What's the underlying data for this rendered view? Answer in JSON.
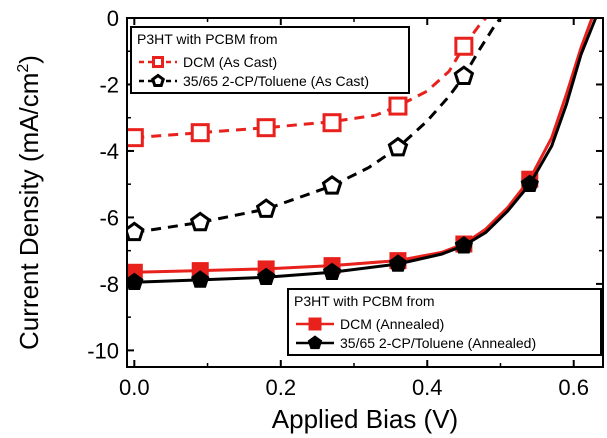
{
  "chart_data": {
    "type": "line",
    "xlabel": "Applied Bias (V)",
    "ylabel_main": "Current Density (mA/cm",
    "ylabel_sup": "2",
    "ylabel_close": ")",
    "xlim": [
      -0.01,
      0.64
    ],
    "ylim": [
      -10.5,
      0
    ],
    "x_ticks": [
      0.0,
      0.2,
      0.4,
      0.6
    ],
    "x_tick_labels": [
      "0.0",
      "0.2",
      "0.4",
      "0.6"
    ],
    "y_ticks": [
      0,
      -2,
      -4,
      -6,
      -8,
      -10
    ],
    "y_tick_labels": [
      "0",
      "-2",
      "-4",
      "-6",
      "-8",
      "-10"
    ],
    "legends": [
      {
        "title": "P3HT with PCBM from",
        "placement": "top-left",
        "entries": [
          {
            "label": "DCM (As Cast)",
            "series": 0
          },
          {
            "label": "35/65 2-CP/Toluene (As Cast)",
            "series": 1
          }
        ]
      },
      {
        "title": "P3HT with PCBM from",
        "placement": "bottom-right",
        "entries": [
          {
            "label": "DCM (Annealed)",
            "series": 2
          },
          {
            "label": "35/65 2-CP/Toluene (Annealed)",
            "series": 3
          }
        ]
      }
    ],
    "series": [
      {
        "name": "DCM (As Cast)",
        "color": "#e8211d",
        "marker": "square-open",
        "line": "dashed",
        "points": [
          [
            0.0,
            -3.6
          ],
          [
            0.09,
            -3.45
          ],
          [
            0.18,
            -3.3
          ],
          [
            0.27,
            -3.15
          ],
          [
            0.36,
            -2.65
          ],
          [
            0.45,
            -0.85
          ]
        ],
        "curve": [
          [
            0.0,
            -3.6
          ],
          [
            0.09,
            -3.45
          ],
          [
            0.18,
            -3.3
          ],
          [
            0.27,
            -3.12
          ],
          [
            0.33,
            -2.92
          ],
          [
            0.36,
            -2.65
          ],
          [
            0.4,
            -2.2
          ],
          [
            0.43,
            -1.6
          ],
          [
            0.45,
            -0.85
          ],
          [
            0.47,
            -0.25
          ],
          [
            0.48,
            0.0
          ]
        ]
      },
      {
        "name": "35/65 2-CP/Toluene (As Cast)",
        "color": "#000000",
        "marker": "pentagon-open",
        "line": "dashed",
        "points": [
          [
            0.0,
            -6.45
          ],
          [
            0.09,
            -6.15
          ],
          [
            0.18,
            -5.75
          ],
          [
            0.27,
            -5.05
          ],
          [
            0.36,
            -3.9
          ],
          [
            0.45,
            -1.75
          ]
        ],
        "curve": [
          [
            0.0,
            -6.45
          ],
          [
            0.09,
            -6.15
          ],
          [
            0.18,
            -5.75
          ],
          [
            0.27,
            -5.05
          ],
          [
            0.32,
            -4.5
          ],
          [
            0.36,
            -3.9
          ],
          [
            0.4,
            -3.1
          ],
          [
            0.43,
            -2.35
          ],
          [
            0.45,
            -1.75
          ],
          [
            0.47,
            -1.0
          ],
          [
            0.49,
            -0.3
          ],
          [
            0.5,
            0.0
          ]
        ]
      },
      {
        "name": "DCM (Annealed)",
        "color": "#e8211d",
        "marker": "square-filled",
        "line": "solid",
        "points": [
          [
            0.0,
            -7.65
          ],
          [
            0.09,
            -7.6
          ],
          [
            0.18,
            -7.55
          ],
          [
            0.27,
            -7.45
          ],
          [
            0.36,
            -7.3
          ],
          [
            0.45,
            -6.8
          ],
          [
            0.54,
            -4.85
          ]
        ],
        "curve": [
          [
            0.0,
            -7.65
          ],
          [
            0.09,
            -7.6
          ],
          [
            0.18,
            -7.55
          ],
          [
            0.27,
            -7.45
          ],
          [
            0.36,
            -7.3
          ],
          [
            0.42,
            -7.05
          ],
          [
            0.45,
            -6.8
          ],
          [
            0.48,
            -6.35
          ],
          [
            0.51,
            -5.7
          ],
          [
            0.54,
            -4.85
          ],
          [
            0.57,
            -3.6
          ],
          [
            0.59,
            -2.3
          ],
          [
            0.61,
            -0.9
          ],
          [
            0.625,
            0.0
          ]
        ]
      },
      {
        "name": "35/65 2-CP/Toluene (Annealed)",
        "color": "#000000",
        "marker": "pentagon-filled",
        "line": "solid",
        "points": [
          [
            0.0,
            -7.95
          ],
          [
            0.09,
            -7.88
          ],
          [
            0.18,
            -7.8
          ],
          [
            0.27,
            -7.65
          ],
          [
            0.36,
            -7.4
          ],
          [
            0.45,
            -6.85
          ],
          [
            0.54,
            -5.0
          ]
        ],
        "curve": [
          [
            0.0,
            -7.95
          ],
          [
            0.09,
            -7.88
          ],
          [
            0.18,
            -7.8
          ],
          [
            0.27,
            -7.65
          ],
          [
            0.36,
            -7.4
          ],
          [
            0.42,
            -7.1
          ],
          [
            0.45,
            -6.85
          ],
          [
            0.48,
            -6.45
          ],
          [
            0.51,
            -5.8
          ],
          [
            0.54,
            -5.0
          ],
          [
            0.57,
            -3.85
          ],
          [
            0.59,
            -2.6
          ],
          [
            0.61,
            -1.1
          ],
          [
            0.63,
            0.0
          ]
        ]
      }
    ]
  }
}
